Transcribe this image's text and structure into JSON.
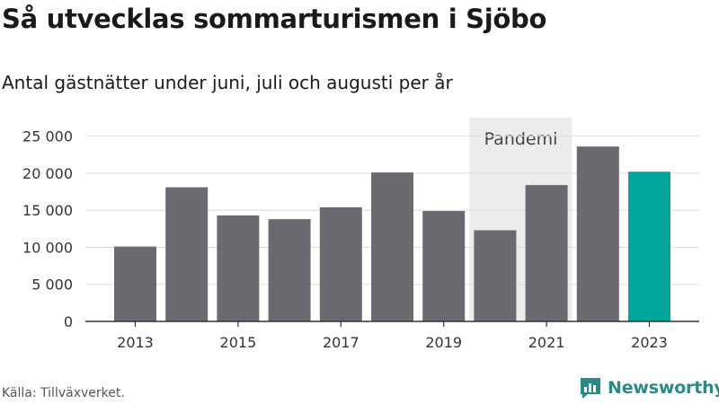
{
  "header": {
    "title": "Så utvecklas sommarturismen i Sjöbo",
    "subtitle": "Antal gästnätter under juni, juli och augusti per år"
  },
  "footer": {
    "source": "Källa: Tillväxverket.",
    "brand": "Newsworthy",
    "brand_icon": "newsworthy-logo-icon"
  },
  "colors": {
    "bar": "#6b6a70",
    "highlight": "#00a69c",
    "shade": "#ececec",
    "grid": "#dddddd",
    "brand": "#2a8a86"
  },
  "chart_data": {
    "type": "bar",
    "categories": [
      "2013",
      "2014",
      "2015",
      "2016",
      "2017",
      "2018",
      "2019",
      "2020",
      "2021",
      "2022",
      "2023"
    ],
    "values": [
      10100,
      18100,
      14300,
      13800,
      15400,
      20100,
      14900,
      12300,
      18400,
      23600,
      20200
    ],
    "highlight_index": 10,
    "xticks": [
      "2013",
      "2015",
      "2017",
      "2019",
      "2021",
      "2023"
    ],
    "yticks": [
      "0",
      "5 000",
      "10 000",
      "15 000",
      "20 000",
      "25 000"
    ],
    "ytick_values": [
      0,
      5000,
      10000,
      15000,
      20000,
      25000
    ],
    "ylim": [
      0,
      27500
    ],
    "shaded_region": {
      "from": "2020",
      "to": "2021",
      "label": "Pandemi"
    },
    "grid": true,
    "xlabel": "",
    "ylabel": ""
  }
}
